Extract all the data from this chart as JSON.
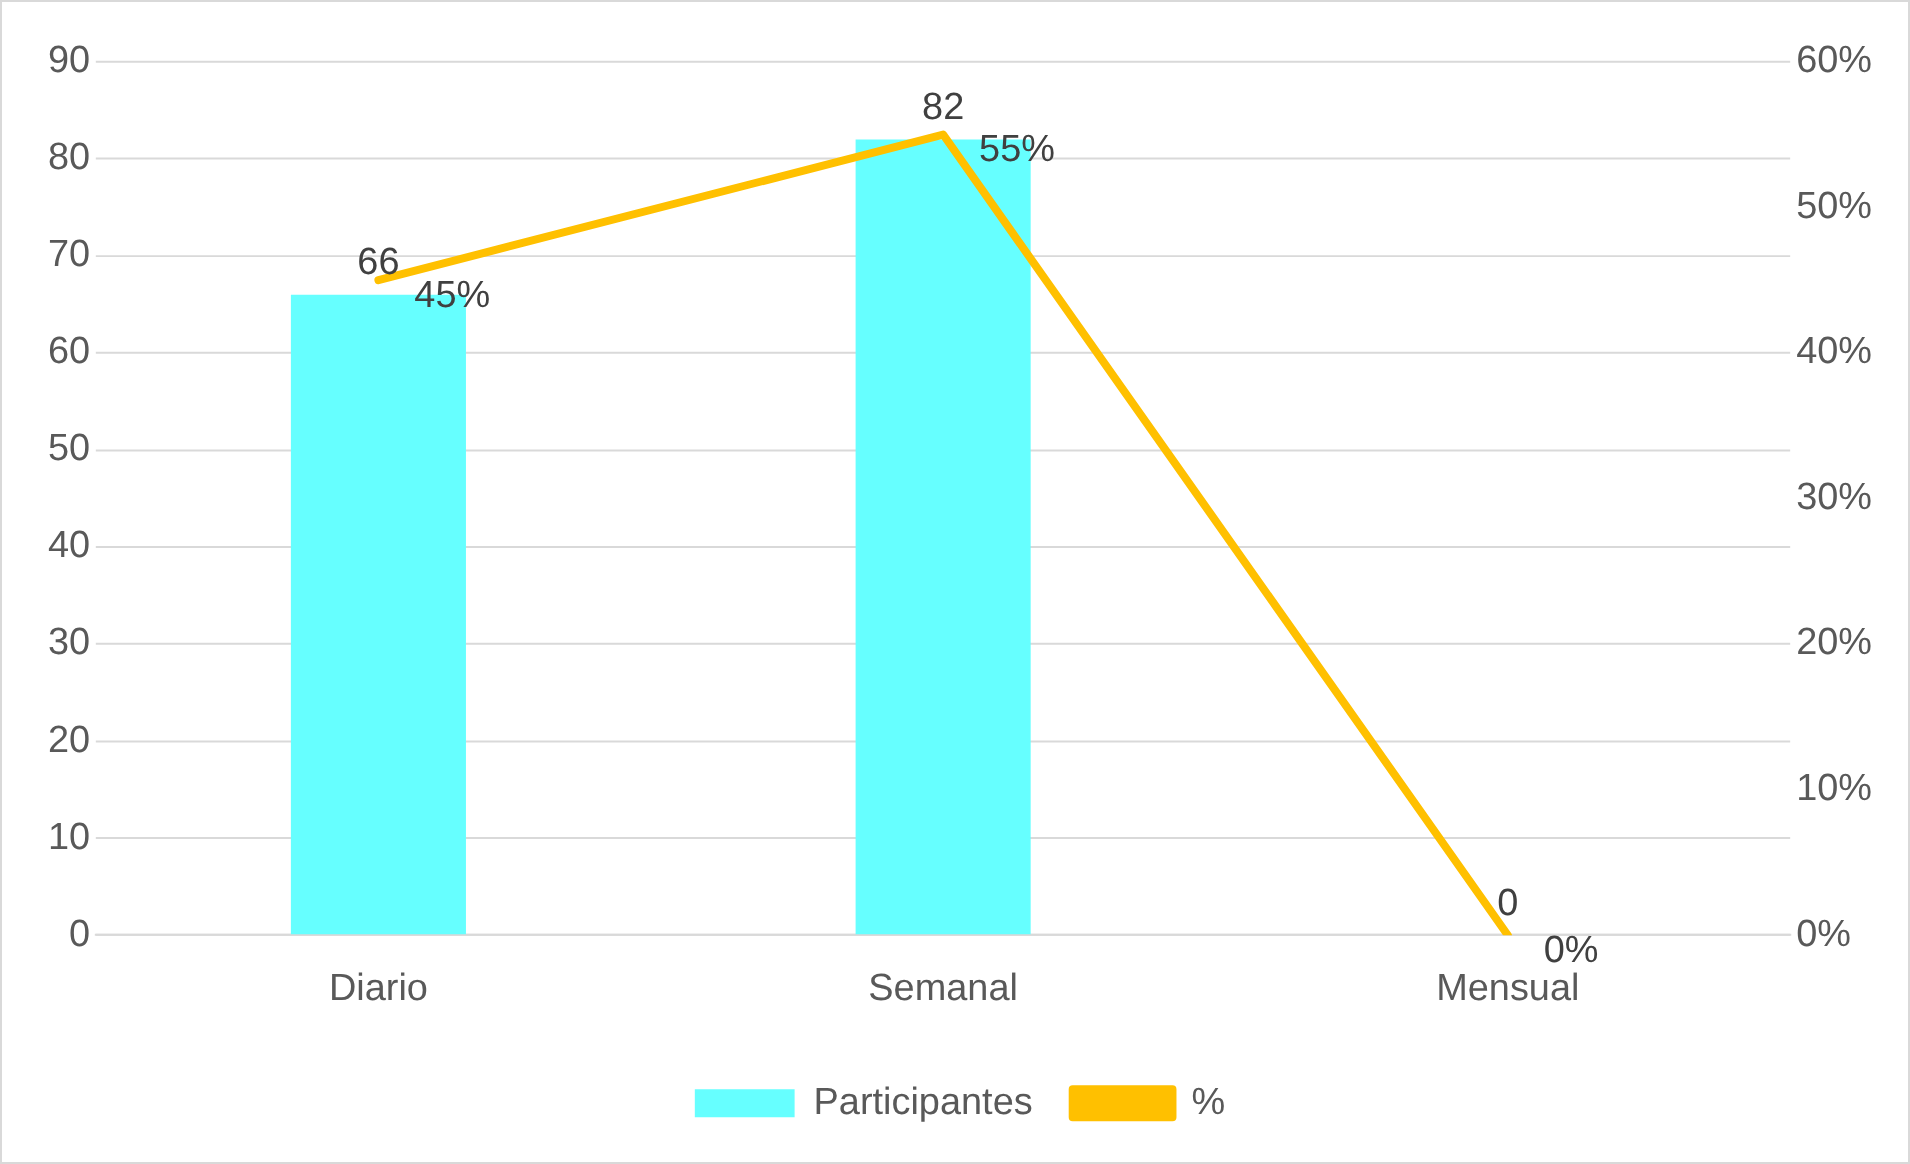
{
  "chart_data": {
    "type": "bar",
    "categories": [
      "Diario",
      "Semanal",
      "Mensual"
    ],
    "series": [
      {
        "name": "Participantes",
        "color": "#66ffff",
        "values": [
          66,
          82,
          0
        ],
        "value_labels": [
          "66",
          "82",
          "0"
        ]
      },
      {
        "name": "%",
        "type": "line",
        "axis": "y2",
        "color": "#ffc000",
        "values": [
          45,
          55,
          0
        ],
        "value_labels": [
          "45%",
          "55%",
          "0%"
        ]
      }
    ],
    "ylim": [
      0,
      90
    ],
    "yticks": [
      0,
      10,
      20,
      30,
      40,
      50,
      60,
      70,
      80,
      90
    ],
    "y2lim": [
      0,
      60
    ],
    "y2ticks": [
      {
        "value": 0,
        "label": "0%"
      },
      {
        "value": 10,
        "label": "10%"
      },
      {
        "value": 20,
        "label": "20%"
      },
      {
        "value": 30,
        "label": "30%"
      },
      {
        "value": 40,
        "label": "40%"
      },
      {
        "value": 50,
        "label": "50%"
      },
      {
        "value": 60,
        "label": "60%"
      }
    ],
    "grid": "y",
    "legend": "bottom",
    "marker": "none",
    "line_style": "solid"
  }
}
